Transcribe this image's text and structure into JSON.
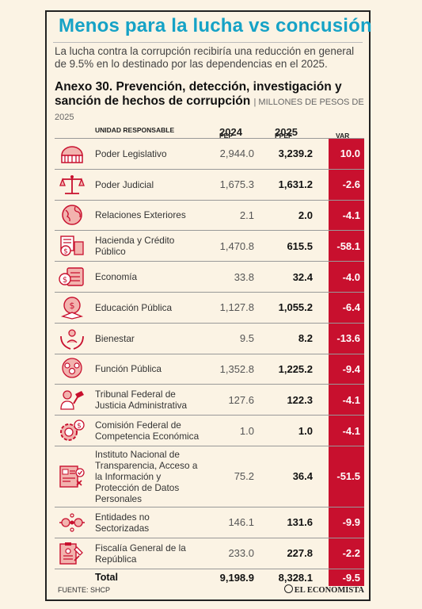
{
  "headline": "Menos para la lucha vs concusión",
  "lead": "La lucha contra la corrupción recibiría una reducción en general de 9.5% en lo destinado por las dependencias en el 2025.",
  "annex_title": "Anexo 30. Prevención, detección, investigación y sanción de hechos de corrupción",
  "annex_unit": "| MILLONES DE PESOS DE 2025",
  "columns": {
    "unit": "UNIDAD RESPONSABLE",
    "pef_prefix": "PEF",
    "pef_year": "2024",
    "ppef_prefix": "PPEF",
    "ppef_year": "2025",
    "var": "VAR %"
  },
  "rows": [
    {
      "name": "Poder Legislativo",
      "v2024": "2,944.0",
      "v2025": "3,239.2",
      "var": "10.0",
      "icon": "legislative-building-icon"
    },
    {
      "name": "Poder Judicial",
      "v2024": "1,675.3",
      "v2025": "1,631.2",
      "var": "-2.6",
      "icon": "scales-of-justice-icon"
    },
    {
      "name": "Relaciones Exteriores",
      "v2024": "2.1",
      "v2025": "2.0",
      "var": "-4.1",
      "icon": "globe-icon"
    },
    {
      "name": "Hacienda y Crédito Público",
      "v2024": "1,470.8",
      "v2025": "615.5",
      "var": "-58.1",
      "icon": "money-calculator-icon"
    },
    {
      "name": "Economía",
      "v2024": "33.8",
      "v2025": "32.4",
      "var": "-4.0",
      "icon": "money-stack-icon"
    },
    {
      "name": "Educación Pública",
      "v2024": "1,127.8",
      "v2025": "1,055.2",
      "var": "-6.4",
      "icon": "graduation-cap-icon"
    },
    {
      "name": "Bienestar",
      "v2024": "9.5",
      "v2025": "8.2",
      "var": "-13.6",
      "icon": "hands-care-icon"
    },
    {
      "name": "Función Pública",
      "v2024": "1,352.8",
      "v2025": "1,225.2",
      "var": "-9.4",
      "icon": "people-group-icon"
    },
    {
      "name": "Tribunal Federal de Justicia Administrativa",
      "v2024": "127.6",
      "v2025": "122.3",
      "var": "-4.1",
      "icon": "judge-icon"
    },
    {
      "name": "Comisión Federal de Competencia Económica",
      "v2024": "1.0",
      "v2025": "1.0",
      "var": "-4.1",
      "icon": "gear-dollar-icon"
    },
    {
      "name": "Instituto Nacional de Transparencia, Acceso a la Información y Protección de Datos Personales",
      "v2024": "75.2",
      "v2025": "36.4",
      "var": "-51.5",
      "icon": "document-check-icon"
    },
    {
      "name": "Entidades no Sectorizadas",
      "v2024": "146.1",
      "v2025": "131.6",
      "var": "-9.9",
      "icon": "network-nodes-icon"
    },
    {
      "name": "Fiscalía General de la República",
      "v2024": "233.0",
      "v2025": "227.8",
      "var": "-2.2",
      "icon": "clipboard-file-icon"
    }
  ],
  "total": {
    "name": "Total",
    "v2024": "9,198.9",
    "v2025": "8,328.1",
    "var": "-9.5"
  },
  "source": "FUENTE: SHCP",
  "brand": "EL ECONOMISTA",
  "colors": {
    "accent_red": "#c8102e",
    "headline_blue": "#15a2c6",
    "background": "#fbf3e4"
  }
}
